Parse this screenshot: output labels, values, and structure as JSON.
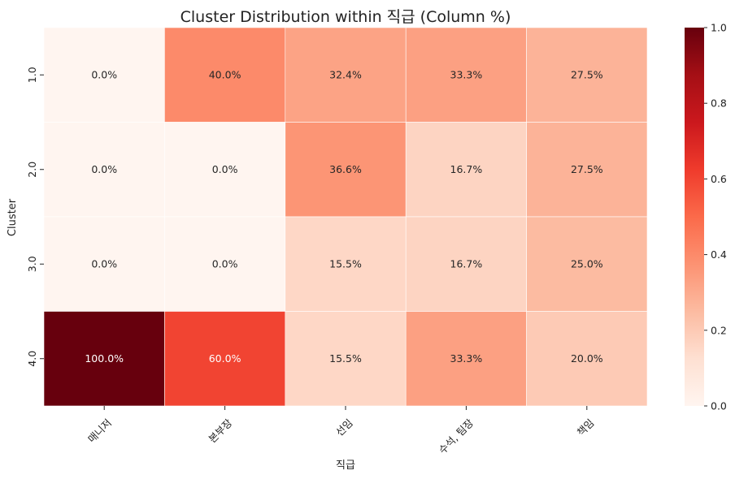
{
  "chart_data": {
    "type": "heatmap",
    "title": "Cluster Distribution within 직급 (Column %)",
    "xlabel": "직급",
    "ylabel": "Cluster",
    "x_categories": [
      "매니저",
      "본부장",
      "선임",
      "수석, 팀장",
      "책임"
    ],
    "y_categories": [
      "1.0",
      "2.0",
      "3.0",
      "4.0"
    ],
    "values": [
      [
        0.0,
        0.4,
        0.324,
        0.333,
        0.275
      ],
      [
        0.0,
        0.0,
        0.366,
        0.167,
        0.275
      ],
      [
        0.0,
        0.0,
        0.155,
        0.167,
        0.25
      ],
      [
        1.0,
        0.6,
        0.155,
        0.333,
        0.2
      ]
    ],
    "annotations": [
      [
        "0.0%",
        "40.0%",
        "32.4%",
        "33.3%",
        "27.5%"
      ],
      [
        "0.0%",
        "0.0%",
        "36.6%",
        "16.7%",
        "27.5%"
      ],
      [
        "0.0%",
        "0.0%",
        "15.5%",
        "16.7%",
        "25.0%"
      ],
      [
        "100.0%",
        "60.0%",
        "15.5%",
        "33.3%",
        "20.0%"
      ]
    ],
    "colorbar": {
      "min": 0.0,
      "max": 1.0,
      "ticks": [
        "0.0",
        "0.2",
        "0.4",
        "0.6",
        "0.8",
        "1.0"
      ],
      "colormap": "Reds"
    }
  }
}
